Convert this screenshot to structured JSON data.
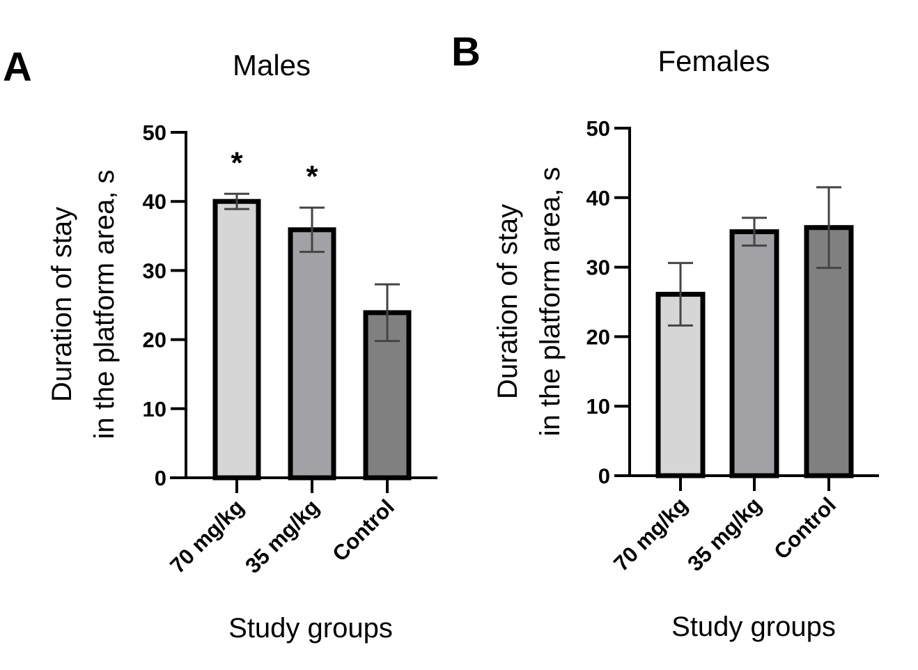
{
  "chart_data": [
    {
      "type": "bar",
      "panel_label": "A",
      "title": "Males",
      "xlabel": "Study groups",
      "ylabel_lines": [
        "Duration of stay",
        "in the platform area, s"
      ],
      "ylim": [
        0,
        50
      ],
      "yticks": [
        0,
        10,
        20,
        30,
        40,
        50
      ],
      "categories": [
        "70 mg/kg",
        "35 mg/kg",
        "Control"
      ],
      "values": [
        40.0,
        35.9,
        23.9
      ],
      "errors": [
        1.1,
        3.2,
        4.1
      ],
      "annotations": [
        "*",
        "*",
        ""
      ],
      "colors": [
        "#d6d6d6",
        "#a2a2a6",
        "#808080"
      ],
      "grid": false
    },
    {
      "type": "bar",
      "panel_label": "B",
      "title": "Females",
      "xlabel": "Study groups",
      "ylabel_lines": [
        "Duration of stay",
        "in the platform area, s"
      ],
      "ylim": [
        0,
        50
      ],
      "yticks": [
        0,
        10,
        20,
        30,
        40,
        50
      ],
      "categories": [
        "70 mg/kg",
        "35 mg/kg",
        "Control"
      ],
      "values": [
        26.1,
        35.1,
        35.7
      ],
      "errors": [
        4.5,
        2.0,
        5.8
      ],
      "annotations": [
        "",
        "",
        ""
      ],
      "colors": [
        "#d6d6d6",
        "#a2a2a6",
        "#808080"
      ],
      "grid": false
    }
  ]
}
